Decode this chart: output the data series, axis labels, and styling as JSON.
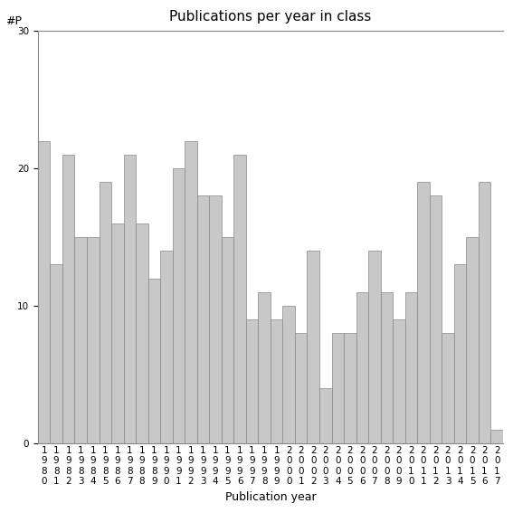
{
  "title": "Publications per year in class",
  "xlabel": "Publication year",
  "ylabel": "#P",
  "years": [
    1980,
    1981,
    1982,
    1983,
    1984,
    1985,
    1986,
    1987,
    1988,
    1989,
    1990,
    1991,
    1992,
    1993,
    1994,
    1995,
    1996,
    1997,
    1998,
    1999,
    2000,
    2001,
    2002,
    2003,
    2004,
    2005,
    2006,
    2007,
    2008,
    2009,
    2010,
    2011,
    2012,
    2013,
    2014,
    2015,
    2016,
    2017
  ],
  "values": [
    22,
    13,
    21,
    15,
    15,
    19,
    16,
    21,
    16,
    12,
    14,
    20,
    22,
    18,
    18,
    15,
    21,
    9,
    11,
    9,
    10,
    8,
    14,
    4,
    8,
    8,
    11,
    14,
    11,
    9,
    11,
    19,
    18,
    8,
    13,
    15,
    19,
    1
  ],
  "bar_color": "#c8c8c8",
  "bar_edge_color": "#888888",
  "ylim": [
    0,
    30
  ],
  "yticks": [
    0,
    10,
    20,
    30
  ],
  "bg_color": "#ffffff",
  "title_fontsize": 11,
  "axis_label_fontsize": 9,
  "tick_fontsize": 7.5
}
